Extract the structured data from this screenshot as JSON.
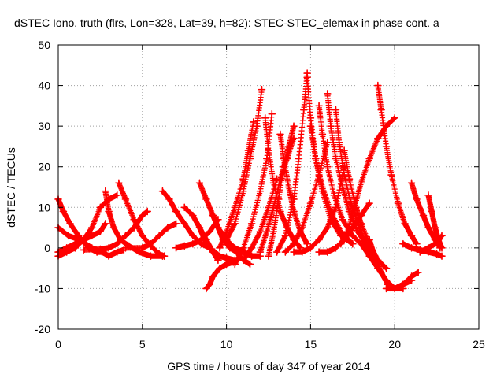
{
  "chart_data": {
    "type": "scatter",
    "title": "dSTEC Iono. truth (flrs, Lon=328, Lat=39, h=82): STEC-STEC_elemax in phase cont. a",
    "xlabel": "GPS time / hours of day 347 of year 2014",
    "ylabel": "dSTEC  / TECUs",
    "xlim": [
      0,
      25
    ],
    "ylim": [
      -20,
      50
    ],
    "xticks": [
      0,
      5,
      10,
      15,
      20,
      25
    ],
    "yticks": [
      -20,
      -10,
      0,
      10,
      20,
      30,
      40,
      50
    ],
    "grid": true,
    "marker": "plus",
    "color": "#ff0000",
    "series": [
      {
        "x": [
          0.0,
          0.3,
          0.7,
          1.2,
          1.8,
          2.3,
          2.7
        ],
        "y": [
          12,
          9,
          6,
          3,
          0,
          -1,
          -1
        ]
      },
      {
        "x": [
          0.0,
          0.5,
          1.0,
          1.5,
          2.0,
          2.5,
          3.0,
          3.5
        ],
        "y": [
          -2,
          -1,
          0,
          2,
          5,
          10,
          12,
          13
        ]
      },
      {
        "x": [
          0.0,
          0.5,
          1.0,
          1.5,
          2.0,
          2.5,
          2.8
        ],
        "y": [
          -1,
          0,
          1,
          2,
          3,
          4,
          6
        ]
      },
      {
        "x": [
          0.0,
          0.6,
          1.3,
          2.0,
          2.6,
          3.0,
          3.5,
          3.9
        ],
        "y": [
          5,
          3,
          2,
          0,
          -1,
          -2,
          -1,
          -0.5
        ]
      },
      {
        "x": [
          2.8,
          3.0,
          3.3,
          3.7,
          4.2,
          4.8,
          5.5,
          6.2
        ],
        "y": [
          14,
          9,
          5,
          2,
          0.5,
          -1,
          -2,
          -2
        ]
      },
      {
        "x": [
          3.6,
          4.0,
          4.5,
          5.0,
          5.5,
          6.0,
          6.3
        ],
        "y": [
          16,
          12,
          7,
          3,
          0.5,
          -1.5,
          -2
        ]
      },
      {
        "x": [
          1.5,
          2.5,
          3.0,
          3.5,
          4.0,
          4.5,
          5.0,
          5.3
        ],
        "y": [
          -0.5,
          -0.3,
          0,
          1,
          3,
          5,
          8,
          9
        ]
      },
      {
        "x": [
          4.0,
          5.0,
          5.5,
          6.0,
          6.5,
          7.0
        ],
        "y": [
          0,
          0,
          1,
          3,
          5,
          6
        ]
      },
      {
        "x": [
          6.2,
          6.6,
          7.0,
          7.5,
          8.0,
          8.5,
          9.0,
          9.4
        ],
        "y": [
          14,
          12,
          9,
          6,
          3,
          1,
          0,
          -2
        ]
      },
      {
        "x": [
          7.5,
          8.0,
          8.4,
          8.8,
          9.2,
          9.5
        ],
        "y": [
          10,
          8,
          5,
          2,
          -1,
          -3
        ]
      },
      {
        "x": [
          8.4,
          8.7,
          9.0,
          9.3,
          9.6,
          10.0,
          10.5
        ],
        "y": [
          5,
          2,
          0,
          -1,
          -2,
          -2.5,
          -3
        ]
      },
      {
        "x": [
          8.8,
          9.0,
          9.2,
          9.4,
          9.6,
          10.0,
          10.4
        ],
        "y": [
          -10,
          -9,
          -7,
          -6,
          -5,
          -4,
          -3.5
        ]
      },
      {
        "x": [
          7.0,
          7.5,
          8.0,
          8.5,
          9.0,
          9.5
        ],
        "y": [
          0,
          0.5,
          1,
          2,
          4,
          7
        ]
      },
      {
        "x": [
          8.4,
          8.8,
          9.2,
          9.5,
          10.0,
          10.5,
          11.0,
          11.5,
          12.0
        ],
        "y": [
          16,
          12,
          8,
          5,
          2,
          0,
          -1,
          -2,
          -2
        ]
      },
      {
        "x": [
          9.2,
          9.5,
          9.8,
          10.2,
          10.6,
          11.0,
          11.4
        ],
        "y": [
          8,
          5,
          2,
          0,
          -1,
          -3,
          -4
        ]
      },
      {
        "x": [
          9.6,
          10.0,
          10.5,
          11.0,
          11.3,
          11.6
        ],
        "y": [
          0,
          4,
          10,
          17,
          24,
          31
        ]
      },
      {
        "x": [
          10.0,
          10.5,
          11.0,
          11.4,
          11.8,
          12.1
        ],
        "y": [
          2,
          6,
          14,
          22,
          30,
          39
        ]
      },
      {
        "x": [
          10.5,
          11.0,
          11.5,
          12.0,
          12.4,
          12.7
        ],
        "y": [
          -4,
          0,
          6,
          14,
          22,
          33
        ]
      },
      {
        "x": [
          11.0,
          11.5,
          12.0,
          12.5,
          13.0
        ],
        "y": [
          -3,
          0,
          4,
          10,
          17
        ]
      },
      {
        "x": [
          12.3,
          12.5,
          12.8,
          13.2,
          13.6,
          14.0,
          14.4
        ],
        "y": [
          32,
          24,
          16,
          9,
          5,
          2,
          0
        ]
      },
      {
        "x": [
          12.0,
          12.4,
          12.8,
          13.2,
          13.6,
          14.0
        ],
        "y": [
          -1,
          4,
          10,
          17,
          22,
          27
        ]
      },
      {
        "x": [
          12.5,
          12.8,
          13.1,
          13.4,
          13.7,
          14.0
        ],
        "y": [
          -2,
          4,
          12,
          20,
          25,
          30
        ]
      },
      {
        "x": [
          13.2,
          13.4,
          13.7,
          14.0,
          14.4,
          14.8
        ],
        "y": [
          28,
          22,
          15,
          9,
          4,
          1
        ]
      },
      {
        "x": [
          13.0,
          13.5,
          14.0,
          14.3,
          14.6,
          14.8
        ],
        "y": [
          -1,
          3,
          12,
          22,
          34,
          43
        ]
      },
      {
        "x": [
          14.8,
          15.0,
          15.3,
          15.7,
          16.2,
          16.8,
          17.5
        ],
        "y": [
          42,
          32,
          22,
          14,
          7,
          3,
          1
        ]
      },
      {
        "x": [
          13.5,
          14.0,
          14.5,
          15.0,
          15.5,
          16.0
        ],
        "y": [
          -1,
          1,
          5,
          11,
          18,
          26
        ]
      },
      {
        "x": [
          15.0,
          15.3,
          15.7,
          16.2,
          16.8,
          17.5
        ],
        "y": [
          30,
          22,
          15,
          9,
          4,
          1
        ]
      },
      {
        "x": [
          15.5,
          15.7,
          16.0,
          16.4,
          16.9,
          17.5,
          18.0
        ],
        "y": [
          35,
          28,
          20,
          13,
          7,
          3,
          1
        ]
      },
      {
        "x": [
          16.0,
          16.2,
          16.5,
          16.9,
          17.3,
          17.8,
          18.3
        ],
        "y": [
          38,
          30,
          22,
          15,
          9,
          4,
          1
        ]
      },
      {
        "x": [
          16.5,
          16.7,
          17.0,
          17.4,
          17.9,
          18.4,
          18.8
        ],
        "y": [
          34,
          26,
          18,
          11,
          5,
          0,
          -3
        ]
      },
      {
        "x": [
          14.0,
          14.5,
          15.0,
          15.5,
          16.0,
          16.5,
          17.0
        ],
        "y": [
          -1,
          -1,
          0,
          2,
          5,
          10,
          20
        ]
      },
      {
        "x": [
          17.0,
          17.3,
          17.7,
          18.0,
          18.5,
          19.0,
          19.5
        ],
        "y": [
          24,
          17,
          10,
          6,
          1,
          -3,
          -5
        ]
      },
      {
        "x": [
          16.8,
          17.2,
          17.6,
          18.0,
          18.5,
          19.0,
          19.5,
          20.0
        ],
        "y": [
          1,
          4,
          10,
          16,
          22,
          27,
          30,
          32
        ]
      },
      {
        "x": [
          15.5,
          16.0,
          16.5,
          17.0,
          17.5,
          18.0,
          18.5
        ],
        "y": [
          -1,
          -1,
          0,
          2,
          5,
          8,
          11
        ]
      },
      {
        "x": [
          18.0,
          18.5,
          19.0,
          19.5,
          20.0,
          20.5
        ],
        "y": [
          1,
          -2,
          -5,
          -8,
          -10,
          -10
        ]
      },
      {
        "x": [
          18.5,
          18.8,
          19.2,
          19.6,
          20.0,
          20.5,
          21.0
        ],
        "y": [
          2,
          -2,
          -6,
          -9,
          -10,
          -9,
          -8
        ]
      },
      {
        "x": [
          19.0,
          19.2,
          19.5,
          19.8,
          20.2,
          20.6,
          21.0,
          21.3
        ],
        "y": [
          40,
          34,
          25,
          18,
          11,
          6,
          3,
          1
        ]
      },
      {
        "x": [
          19.5,
          20.0,
          20.5,
          21.0,
          21.4
        ],
        "y": [
          -10,
          -10,
          -9,
          -7,
          -6
        ]
      },
      {
        "x": [
          21.0,
          21.3,
          21.7,
          22.0,
          22.4,
          22.7
        ],
        "y": [
          16,
          12,
          8,
          5,
          2,
          0
        ]
      },
      {
        "x": [
          22.0,
          22.2,
          22.4,
          22.6,
          22.8
        ],
        "y": [
          13,
          9,
          5,
          2,
          0
        ]
      },
      {
        "x": [
          20.5,
          21.0,
          21.5,
          22.0,
          22.5,
          22.8
        ],
        "y": [
          1,
          0,
          -0.5,
          -1,
          -1.5,
          -2
        ]
      },
      {
        "x": [
          21.5,
          22.0,
          22.4,
          22.8
        ],
        "y": [
          -1,
          0,
          1,
          3
        ]
      }
    ]
  }
}
